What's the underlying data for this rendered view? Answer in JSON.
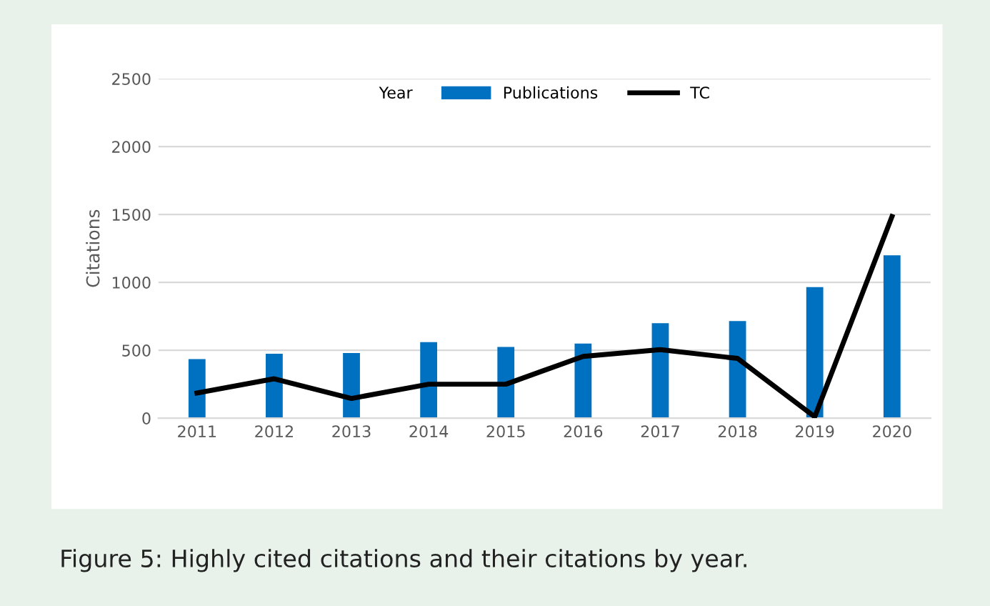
{
  "chart_data": {
    "type": "bar",
    "ylabel": "Citations",
    "legend_title": "Year",
    "annotations": [
      "Figure 5: Highly cited citations and their citations by year."
    ],
    "categories": [
      "2011",
      "2012",
      "2013",
      "2014",
      "2015",
      "2016",
      "2017",
      "2018",
      "2019",
      "2020"
    ],
    "series": [
      {
        "name": "Publications",
        "color": "#0070c0",
        "values": [
          435,
          475,
          480,
          560,
          525,
          550,
          700,
          715,
          965,
          1200
        ]
      },
      {
        "name": "TC",
        "type": "line",
        "color": "#000000",
        "values": [
          185,
          290,
          145,
          250,
          250,
          455,
          505,
          440,
          10,
          1485
        ]
      }
    ],
    "ylim": [
      0,
      2500
    ],
    "yticks": [
      0,
      500,
      1000,
      1500,
      2000,
      2500
    ],
    "grid": "y",
    "legend": "top"
  }
}
